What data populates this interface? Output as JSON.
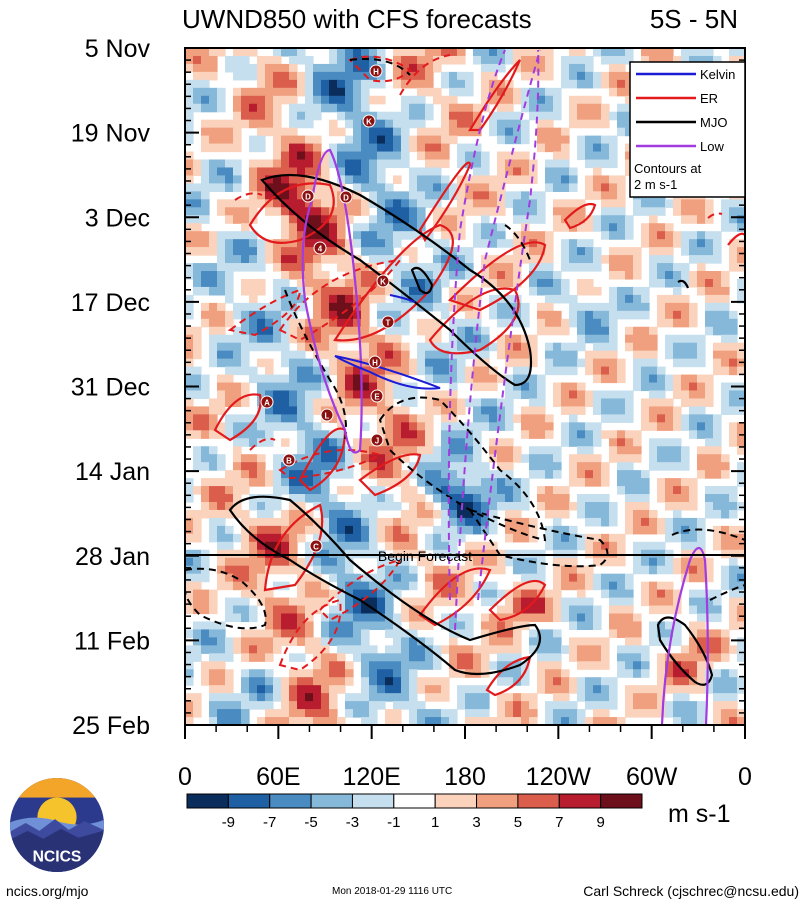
{
  "chart_data": {
    "type": "heatmap",
    "title": "UWND850 with CFS forecasts",
    "region": "5S - 5N",
    "y_ticks": [
      "5 Nov",
      "19 Nov",
      "3 Dec",
      "17 Dec",
      "31 Dec",
      "14 Jan",
      "28 Jan",
      "11 Feb",
      "25 Feb"
    ],
    "x_ticks": [
      "0",
      "60E",
      "120E",
      "180",
      "120W",
      "60W",
      "0"
    ],
    "x_range_deg": [
      0,
      360
    ],
    "begin_forecast_label": "Begin Forecast",
    "begin_forecast_date": "28 Jan",
    "colorbar": {
      "labels": [
        "-9",
        "-7",
        "-5",
        "-3",
        "-1",
        "1",
        "3",
        "5",
        "7",
        "9"
      ],
      "colors": [
        "#0a2d5c",
        "#1f5fa3",
        "#4a8cc2",
        "#86b8d9",
        "#c6dfee",
        "#ffffff",
        "#fbd3bd",
        "#f0a07f",
        "#db5e4d",
        "#b81c2f",
        "#6e0f1c"
      ],
      "units": "m s-1"
    },
    "legend": {
      "entries": [
        {
          "label": "Kelvin",
          "color": "#1c1cd6"
        },
        {
          "label": "ER",
          "color": "#e31a1c"
        },
        {
          "label": "MJO",
          "color": "#000000"
        },
        {
          "label": "Low",
          "color": "#a23be0"
        }
      ],
      "note_line1": "Contours at",
      "note_line2": "2 m s-1"
    },
    "storm_markers": [
      "D",
      "D",
      "4",
      "K",
      "T",
      "H",
      "E",
      "A",
      "L",
      "J",
      "B",
      "C",
      "H",
      "K"
    ]
  },
  "footer": {
    "left": "ncics.org/mjo",
    "middle": "Mon 2018-01-29 1116 UTC",
    "right": "Carl Schreck (cjschrec@ncsu.edu)"
  },
  "logo": {
    "text": "NCICS"
  }
}
